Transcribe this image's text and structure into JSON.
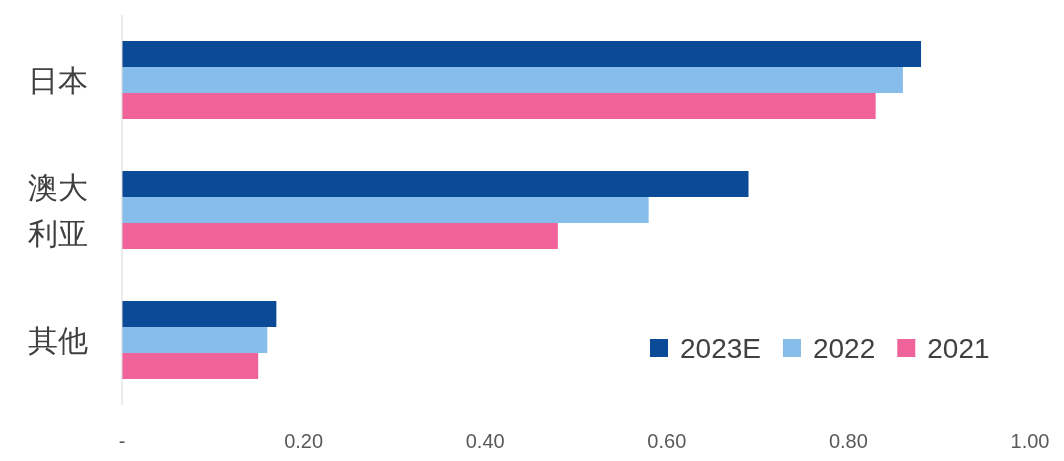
{
  "chart_data": {
    "type": "bar",
    "orientation": "horizontal",
    "categories": [
      "日本",
      "澳大利亚",
      "其他"
    ],
    "series": [
      {
        "name": "2023E",
        "color": "#0a4a97",
        "values": [
          0.88,
          0.69,
          0.17
        ]
      },
      {
        "name": "2022",
        "color": "#86bdeb",
        "values": [
          0.86,
          0.58,
          0.16
        ]
      },
      {
        "name": "2021",
        "color": "#f0639a",
        "values": [
          0.83,
          0.48,
          0.15
        ]
      }
    ],
    "xlim": [
      0,
      1
    ],
    "xticks": [
      {
        "value": 0,
        "label": "-"
      },
      {
        "value": 0.2,
        "label": "0.20"
      },
      {
        "value": 0.4,
        "label": "0.40"
      },
      {
        "value": 0.6,
        "label": "0.60"
      },
      {
        "value": 0.8,
        "label": "0.80"
      },
      {
        "value": 1,
        "label": "1.00"
      }
    ],
    "legend": "bottom right",
    "grid": false
  }
}
